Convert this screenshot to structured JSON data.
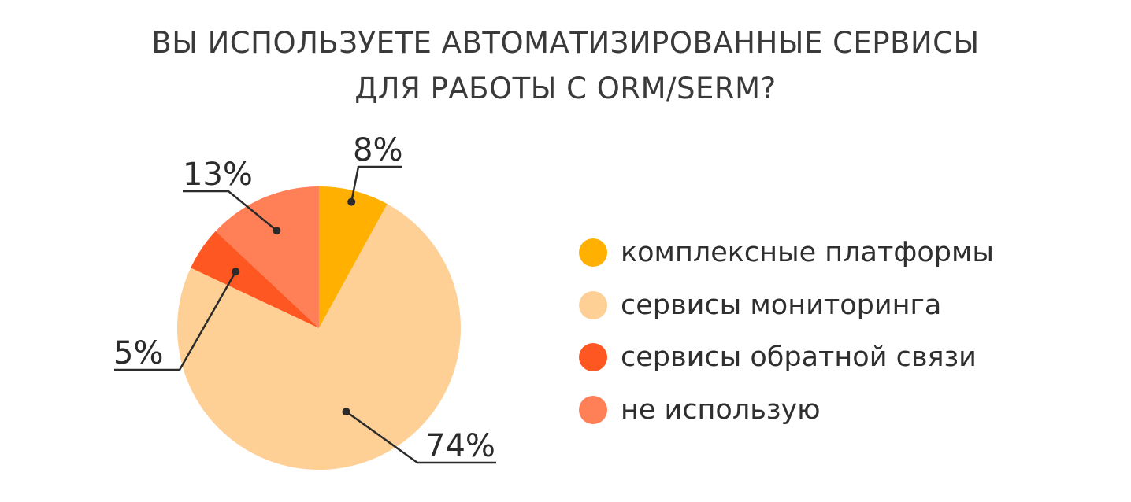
{
  "title_lines": [
    "ВЫ ИСПОЛЬЗУЕТЕ АВТОМАТИЗИРОВАННЫЕ СЕРВИСЫ",
    "ДЛЯ РАБОТЫ С ORM/SERM?"
  ],
  "chart_data": {
    "type": "pie",
    "title": "ВЫ ИСПОЛЬЗУЕТЕ АВТОМАТИЗИРОВАННЫЕ СЕРВИСЫ ДЛЯ РАБОТЫ С ORM/SERM?",
    "slices": [
      {
        "label": "комплексные платформы",
        "value": 8,
        "display": "8%",
        "color": "#FFB000"
      },
      {
        "label": "сервисы мониторинга",
        "value": 74,
        "display": "74%",
        "color": "#FFD096"
      },
      {
        "label": "сервисы обратной связи",
        "value": 5,
        "display": "5%",
        "color": "#FF5722"
      },
      {
        "label": "не использую",
        "value": 13,
        "display": "13%",
        "color": "#FF7F57"
      }
    ],
    "start": "12 o'clock",
    "direction": "clockwise",
    "legend_position": "right"
  }
}
